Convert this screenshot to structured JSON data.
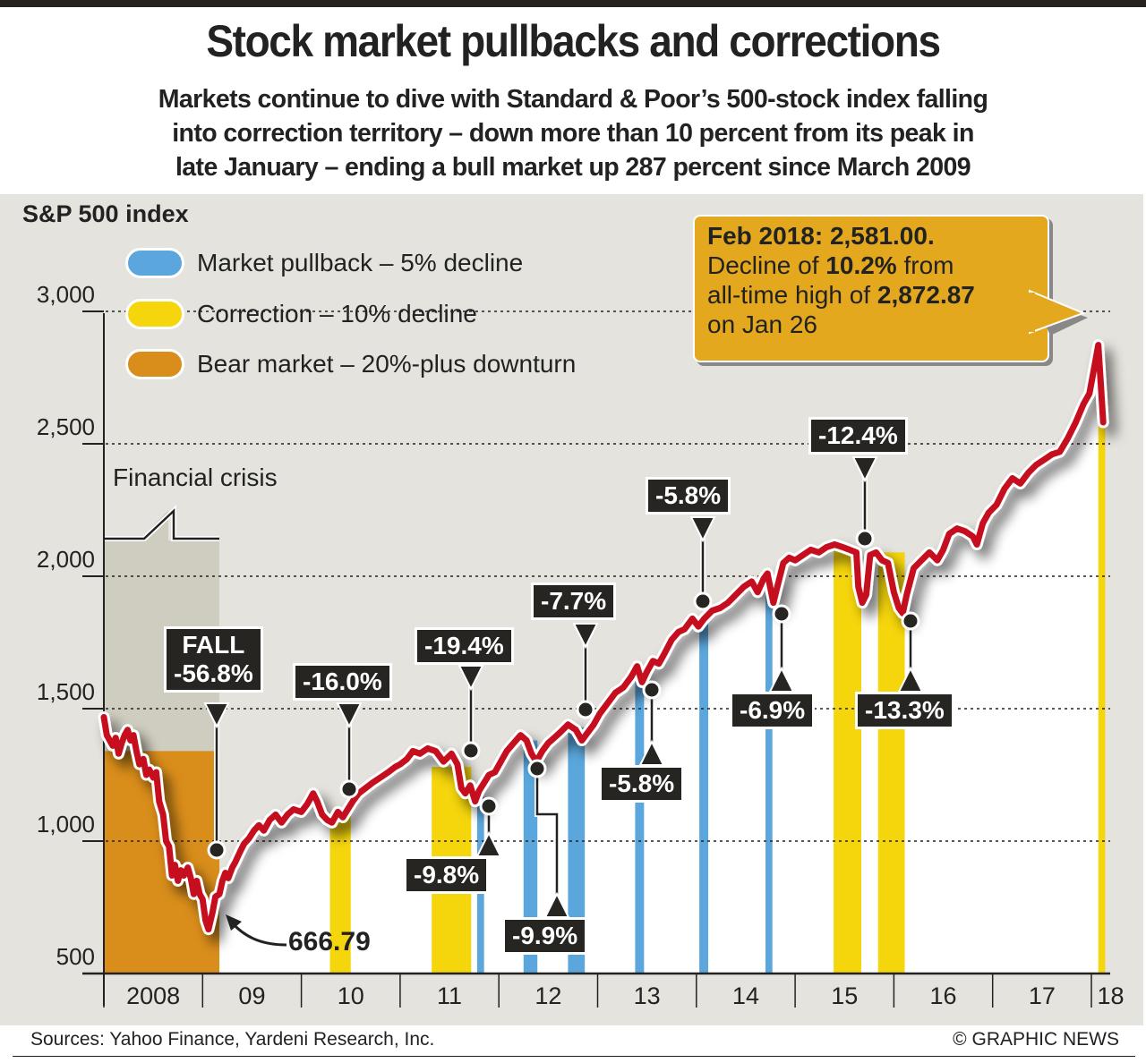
{
  "header": {
    "title": "Stock market pullbacks and corrections",
    "subtitle_lines": [
      "Markets continue to dive with Standard & Poor’s 500-stock index falling",
      "into correction territory – down more than 10 percent from its peak in",
      "late January – ending a bull market up 287 percent since March 2009"
    ]
  },
  "colors": {
    "pullback": "#5aa6dd",
    "correction": "#f5d50c",
    "bear": "#d98d1a",
    "line": "#c50f1f",
    "panel": "#e4e3dd",
    "crisis": "#cfcdbf",
    "callout": "#e4a81e",
    "label_bg": "#262522"
  },
  "footer": {
    "sources": "Sources: Yahoo Finance, Yardeni Research, Inc.",
    "credit": "© GRAPHIC NEWS"
  },
  "chart_data": {
    "type": "line",
    "title": "S&P 500 index",
    "ylabel": "S&P 500 index",
    "xlabel": "",
    "ylim": [
      500,
      3000
    ],
    "xlim": [
      2008.0,
      2018.15
    ],
    "y_ticks": [
      {
        "value": 3000,
        "label": "3,000"
      },
      {
        "value": 2500,
        "label": "2,500"
      },
      {
        "value": 2000,
        "label": "2,000"
      },
      {
        "value": 1500,
        "label": "1,500"
      },
      {
        "value": 1000,
        "label": "1,000"
      },
      {
        "value": 500,
        "label": "500"
      }
    ],
    "x_ticks": [
      {
        "value": 2008,
        "label": "2008"
      },
      {
        "value": 2009,
        "label": "09"
      },
      {
        "value": 2010,
        "label": "10"
      },
      {
        "value": 2011,
        "label": "11"
      },
      {
        "value": 2012,
        "label": "12"
      },
      {
        "value": 2013,
        "label": "13"
      },
      {
        "value": 2014,
        "label": "14"
      },
      {
        "value": 2015,
        "label": "15"
      },
      {
        "value": 2016,
        "label": "16"
      },
      {
        "value": 2017,
        "label": "17"
      },
      {
        "value": 2018,
        "label": "18"
      }
    ],
    "grid": "horizontal-dotted",
    "legend": {
      "placement": "top-left",
      "entries": [
        {
          "key": "pullback",
          "label": "Market pullback – 5% decline"
        },
        {
          "key": "correction",
          "label": "Correction – 10% decline"
        },
        {
          "key": "bear",
          "label": "Bear market – 20%-plus downturn"
        }
      ]
    },
    "series": [
      {
        "name": "S&P 500 index",
        "points": [
          [
            2008.0,
            1468
          ],
          [
            2008.03,
            1400
          ],
          [
            2008.06,
            1380
          ],
          [
            2008.09,
            1360
          ],
          [
            2008.12,
            1390
          ],
          [
            2008.15,
            1330
          ],
          [
            2008.18,
            1370
          ],
          [
            2008.21,
            1400
          ],
          [
            2008.24,
            1420
          ],
          [
            2008.27,
            1380
          ],
          [
            2008.3,
            1400
          ],
          [
            2008.33,
            1340
          ],
          [
            2008.36,
            1290
          ],
          [
            2008.4,
            1310
          ],
          [
            2008.43,
            1250
          ],
          [
            2008.46,
            1270
          ],
          [
            2008.5,
            1240
          ],
          [
            2008.53,
            1260
          ],
          [
            2008.56,
            1150
          ],
          [
            2008.6,
            1100
          ],
          [
            2008.63,
            1000
          ],
          [
            2008.66,
            980
          ],
          [
            2008.69,
            870
          ],
          [
            2008.72,
            910
          ],
          [
            2008.75,
            850
          ],
          [
            2008.78,
            890
          ],
          [
            2008.81,
            870
          ],
          [
            2008.85,
            900
          ],
          [
            2008.88,
            860
          ],
          [
            2008.91,
            800
          ],
          [
            2008.94,
            850
          ],
          [
            2008.97,
            800
          ],
          [
            2009.0,
            780
          ],
          [
            2009.03,
            700
          ],
          [
            2009.06,
            667
          ],
          [
            2009.1,
            730
          ],
          [
            2009.13,
            790
          ],
          [
            2009.17,
            800
          ],
          [
            2009.2,
            850
          ],
          [
            2009.23,
            880
          ],
          [
            2009.26,
            860
          ],
          [
            2009.3,
            900
          ],
          [
            2009.33,
            920
          ],
          [
            2009.38,
            960
          ],
          [
            2009.42,
            990
          ],
          [
            2009.47,
            1010
          ],
          [
            2009.52,
            1040
          ],
          [
            2009.57,
            1060
          ],
          [
            2009.62,
            1040
          ],
          [
            2009.68,
            1080
          ],
          [
            2009.74,
            1100
          ],
          [
            2009.8,
            1070
          ],
          [
            2009.86,
            1100
          ],
          [
            2009.92,
            1120
          ],
          [
            2010.0,
            1110
          ],
          [
            2010.06,
            1140
          ],
          [
            2010.12,
            1180
          ],
          [
            2010.16,
            1150
          ],
          [
            2010.21,
            1100
          ],
          [
            2010.26,
            1080
          ],
          [
            2010.31,
            1070
          ],
          [
            2010.37,
            1110
          ],
          [
            2010.42,
            1090
          ],
          [
            2010.47,
            1120
          ],
          [
            2010.52,
            1150
          ],
          [
            2010.58,
            1180
          ],
          [
            2010.65,
            1200
          ],
          [
            2010.72,
            1220
          ],
          [
            2010.8,
            1240
          ],
          [
            2010.88,
            1260
          ],
          [
            2010.95,
            1280
          ],
          [
            2011.0,
            1290
          ],
          [
            2011.07,
            1310
          ],
          [
            2011.13,
            1340
          ],
          [
            2011.2,
            1330
          ],
          [
            2011.28,
            1350
          ],
          [
            2011.36,
            1340
          ],
          [
            2011.44,
            1300
          ],
          [
            2011.52,
            1330
          ],
          [
            2011.58,
            1290
          ],
          [
            2011.62,
            1200
          ],
          [
            2011.66,
            1180
          ],
          [
            2011.71,
            1210
          ],
          [
            2011.76,
            1150
          ],
          [
            2011.8,
            1190
          ],
          [
            2011.85,
            1220
          ],
          [
            2011.9,
            1250
          ],
          [
            2011.96,
            1260
          ],
          [
            2012.02,
            1300
          ],
          [
            2012.08,
            1340
          ],
          [
            2012.15,
            1370
          ],
          [
            2012.22,
            1400
          ],
          [
            2012.28,
            1380
          ],
          [
            2012.33,
            1330
          ],
          [
            2012.38,
            1300
          ],
          [
            2012.44,
            1340
          ],
          [
            2012.5,
            1370
          ],
          [
            2012.56,
            1390
          ],
          [
            2012.62,
            1410
          ],
          [
            2012.7,
            1440
          ],
          [
            2012.78,
            1420
          ],
          [
            2012.84,
            1380
          ],
          [
            2012.9,
            1410
          ],
          [
            2012.96,
            1440
          ],
          [
            2013.02,
            1480
          ],
          [
            2013.1,
            1520
          ],
          [
            2013.18,
            1560
          ],
          [
            2013.26,
            1580
          ],
          [
            2013.34,
            1620
          ],
          [
            2013.4,
            1660
          ],
          [
            2013.45,
            1600
          ],
          [
            2013.5,
            1640
          ],
          [
            2013.56,
            1680
          ],
          [
            2013.62,
            1670
          ],
          [
            2013.68,
            1710
          ],
          [
            2013.75,
            1760
          ],
          [
            2013.82,
            1790
          ],
          [
            2013.88,
            1800
          ],
          [
            2013.96,
            1840
          ],
          [
            2014.02,
            1810
          ],
          [
            2014.08,
            1840
          ],
          [
            2014.16,
            1870
          ],
          [
            2014.24,
            1880
          ],
          [
            2014.32,
            1900
          ],
          [
            2014.4,
            1930
          ],
          [
            2014.48,
            1960
          ],
          [
            2014.56,
            1980
          ],
          [
            2014.62,
            1940
          ],
          [
            2014.68,
            1990
          ],
          [
            2014.72,
            2010
          ],
          [
            2014.78,
            1900
          ],
          [
            2014.82,
            1960
          ],
          [
            2014.88,
            2050
          ],
          [
            2014.94,
            2070
          ],
          [
            2015.0,
            2060
          ],
          [
            2015.08,
            2080
          ],
          [
            2015.16,
            2100
          ],
          [
            2015.24,
            2090
          ],
          [
            2015.32,
            2110
          ],
          [
            2015.4,
            2120
          ],
          [
            2015.48,
            2110
          ],
          [
            2015.55,
            2100
          ],
          [
            2015.62,
            2090
          ],
          [
            2015.64,
            1960
          ],
          [
            2015.68,
            1900
          ],
          [
            2015.72,
            1930
          ],
          [
            2015.76,
            2080
          ],
          [
            2015.82,
            2090
          ],
          [
            2015.88,
            2060
          ],
          [
            2015.94,
            2050
          ],
          [
            2016.0,
            1940
          ],
          [
            2016.05,
            1880
          ],
          [
            2016.09,
            1860
          ],
          [
            2016.13,
            1930
          ],
          [
            2016.2,
            2030
          ],
          [
            2016.28,
            2060
          ],
          [
            2016.36,
            2090
          ],
          [
            2016.44,
            2060
          ],
          [
            2016.5,
            2100
          ],
          [
            2016.56,
            2160
          ],
          [
            2016.64,
            2180
          ],
          [
            2016.72,
            2170
          ],
          [
            2016.8,
            2150
          ],
          [
            2016.84,
            2120
          ],
          [
            2016.9,
            2200
          ],
          [
            2016.96,
            2240
          ],
          [
            2017.04,
            2270
          ],
          [
            2017.12,
            2330
          ],
          [
            2017.2,
            2370
          ],
          [
            2017.28,
            2350
          ],
          [
            2017.36,
            2390
          ],
          [
            2017.44,
            2420
          ],
          [
            2017.52,
            2440
          ],
          [
            2017.6,
            2460
          ],
          [
            2017.68,
            2470
          ],
          [
            2017.76,
            2520
          ],
          [
            2017.84,
            2580
          ],
          [
            2017.92,
            2650
          ],
          [
            2017.98,
            2690
          ],
          [
            2018.03,
            2790
          ],
          [
            2018.07,
            2873
          ],
          [
            2018.1,
            2700
          ],
          [
            2018.12,
            2581
          ]
        ]
      }
    ],
    "shaded_regions": [
      {
        "type": "bear",
        "start": 2008.0,
        "end": 2009.17,
        "value": 1340
      },
      {
        "type": "correction",
        "start": 2010.29,
        "end": 2010.5,
        "value": 1100
      },
      {
        "type": "correction",
        "start": 2011.32,
        "end": 2011.72,
        "value": 1280
      },
      {
        "type": "pullback",
        "start": 2011.78,
        "end": 2011.85,
        "value": 1170
      },
      {
        "type": "pullback",
        "start": 2012.25,
        "end": 2012.39,
        "value": 1380
      },
      {
        "type": "pullback",
        "start": 2012.7,
        "end": 2012.87,
        "value": 1430
      },
      {
        "type": "pullback",
        "start": 2013.38,
        "end": 2013.47,
        "value": 1640
      },
      {
        "type": "pullback",
        "start": 2014.03,
        "end": 2014.12,
        "value": 1820
      },
      {
        "type": "pullback",
        "start": 2014.7,
        "end": 2014.77,
        "value": 1940
      },
      {
        "type": "correction",
        "start": 2015.39,
        "end": 2015.67,
        "value": 2100
      },
      {
        "type": "correction",
        "start": 2015.84,
        "end": 2016.11,
        "value": 2090
      },
      {
        "type": "correction",
        "start": 2018.07,
        "end": 2018.14,
        "value": 2581
      }
    ],
    "annotations": [
      {
        "text_lines": [
          "FALL",
          "-56.8%"
        ],
        "x": 2009.13,
        "y": 960
      },
      {
        "text_lines": [
          "-16.0%"
        ],
        "x": 2010.29,
        "y": 1200
      },
      {
        "text_lines": [
          "-19.4%"
        ],
        "x": 2011.72,
        "y": 1330
      },
      {
        "text_lines": [
          "-9.8%"
        ],
        "x": 2011.85,
        "y": 1130
      },
      {
        "text_lines": [
          "-9.9%"
        ],
        "x": 2012.39,
        "y": 1270
      },
      {
        "text_lines": [
          "-7.7%"
        ],
        "x": 2012.87,
        "y": 1500
      },
      {
        "text_lines": [
          "-5.8%"
        ],
        "x": 2013.47,
        "y": 1580
      },
      {
        "text_lines": [
          "-5.8%"
        ],
        "x": 2014.12,
        "y": 1900
      },
      {
        "text_lines": [
          "-6.9%"
        ],
        "x": 2014.77,
        "y": 1850
      },
      {
        "text_lines": [
          "-12.4%"
        ],
        "x": 2015.67,
        "y": 2130
      },
      {
        "text_lines": [
          "-13.3%"
        ],
        "x": 2016.11,
        "y": 1830
      }
    ],
    "crisis_label": "Financial crisis",
    "low_label": "666.79",
    "callout": {
      "line1": "Feb 2018: 2,581.00.",
      "line2_pre": "Decline of ",
      "line2_bold": "10.2%",
      "line2_post": " from",
      "line3_pre": "all-time high of ",
      "line3_bold": "2,872.87",
      "line4": "on Jan 26"
    }
  }
}
